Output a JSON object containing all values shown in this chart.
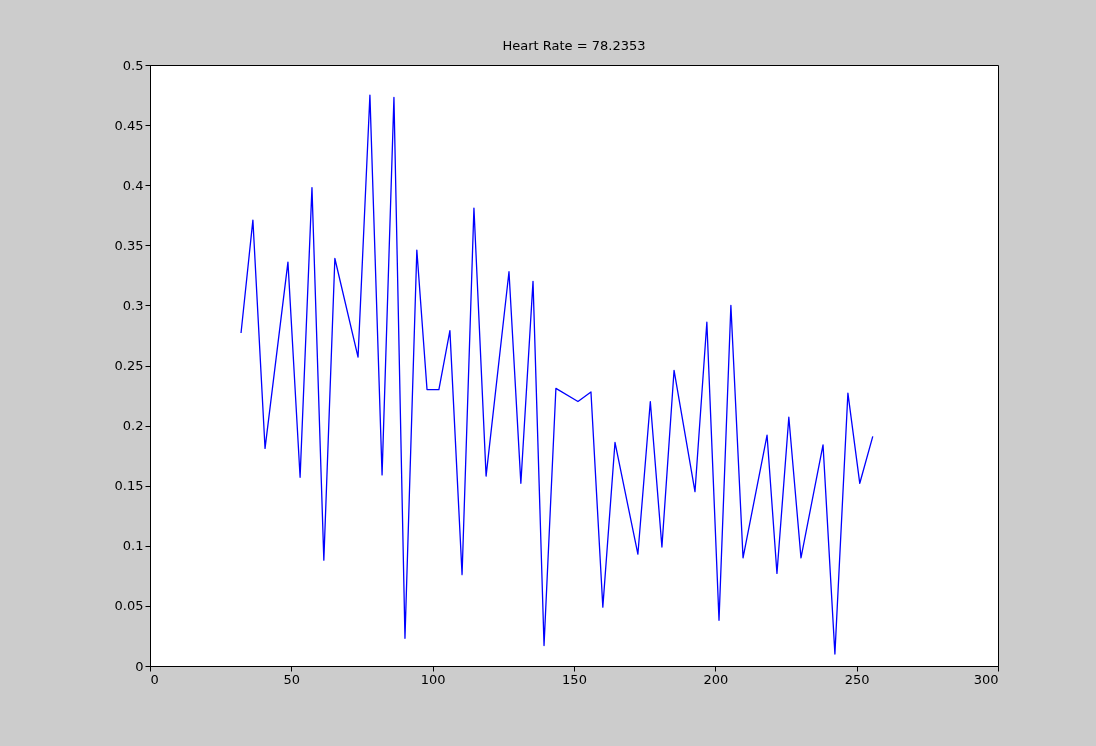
{
  "chart_data": {
    "type": "line",
    "title": "Heart Rate = 78.2353",
    "x": [
      32.2,
      36.4,
      40.7,
      48.8,
      53.1,
      57.3,
      61.5,
      65.4,
      73.6,
      77.8,
      82.1,
      86.3,
      90.2,
      94.4,
      98.0,
      102.2,
      106.1,
      110.4,
      114.6,
      118.9,
      127.0,
      131.2,
      135.5,
      139.4,
      143.6,
      151.4,
      156.0,
      160.2,
      164.5,
      172.6,
      177.0,
      181.1,
      185.4,
      192.8,
      197.0,
      201.3,
      205.5,
      209.8,
      218.3,
      221.8,
      226.0,
      230.3,
      238.1,
      242.3,
      246.9,
      251.1,
      255.7
    ],
    "series": [
      {
        "color": "#0000ff",
        "values": [
          0.277,
          0.371,
          0.181,
          0.336,
          0.157,
          0.398,
          0.088,
          0.339,
          0.257,
          0.475,
          0.159,
          0.473,
          0.023,
          0.346,
          0.23,
          0.23,
          0.279,
          0.076,
          0.381,
          0.158,
          0.328,
          0.152,
          0.32,
          0.017,
          0.231,
          0.22,
          0.228,
          0.049,
          0.186,
          0.093,
          0.22,
          0.099,
          0.246,
          0.145,
          0.286,
          0.038,
          0.3,
          0.09,
          0.192,
          0.077,
          0.207,
          0.09,
          0.184,
          0.01,
          0.227,
          0.152,
          0.191
        ]
      }
    ],
    "xlim": [
      0,
      300
    ],
    "xticks": [
      0,
      50,
      100,
      150,
      200,
      250,
      300
    ],
    "ylim": [
      0,
      0.5
    ],
    "yticks": [
      0,
      0.05,
      0.1,
      0.15,
      0.2,
      0.25,
      0.3,
      0.35,
      0.4,
      0.45,
      0.5
    ],
    "grid": false,
    "legend": false
  }
}
